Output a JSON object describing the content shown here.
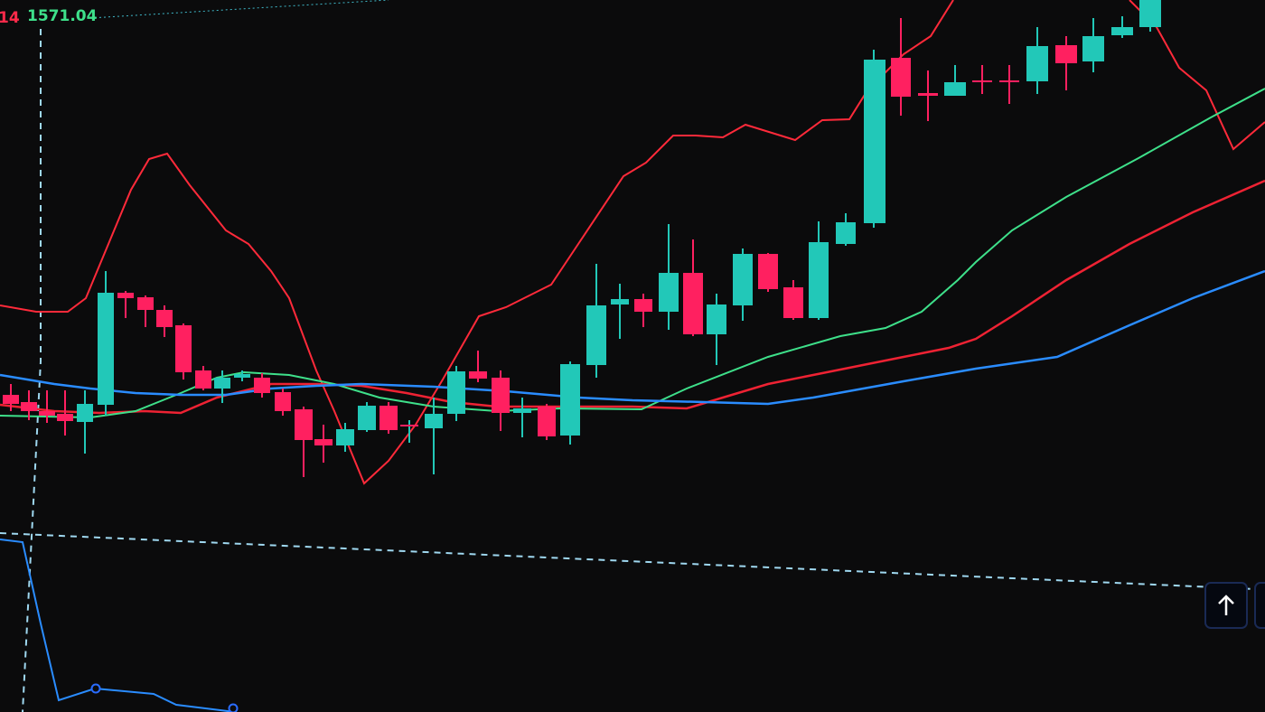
{
  "chart": {
    "left_label": "14",
    "price_label": "1571.04"
  }
}
